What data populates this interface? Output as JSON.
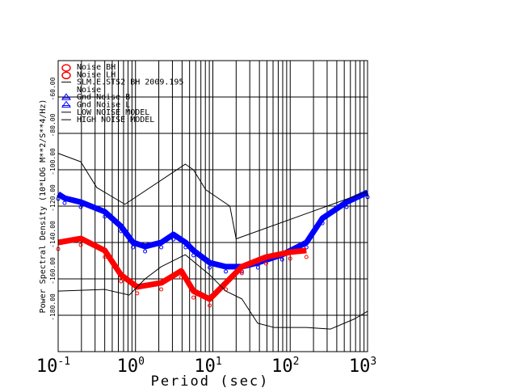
{
  "chart_data": {
    "type": "line",
    "xlabel": "Period (sec)",
    "ylabel": "Power Spectral Density (10*LOG M**2/S**4/Hz)",
    "xscale": "log",
    "xlim": [
      0.1,
      1000
    ],
    "ylim": [
      -200,
      -40
    ],
    "grid": true,
    "legend_placement": "top-left",
    "x_tick_labels": [
      {
        "base": "10",
        "exp": "-1",
        "value": 0.1
      },
      {
        "base": "10",
        "exp": "0",
        "value": 1
      },
      {
        "base": "10",
        "exp": "1",
        "value": 10
      },
      {
        "base": "10",
        "exp": "2",
        "value": 100
      },
      {
        "base": "10",
        "exp": "3",
        "value": 1000
      }
    ],
    "y_ticks": [
      {
        "label": "-60.00",
        "value": -60
      },
      {
        "label": "-80.00",
        "value": -80
      },
      {
        "label": "-100.00",
        "value": -100
      },
      {
        "label": "-120.00",
        "value": -120
      },
      {
        "label": "-140.00",
        "value": -140
      },
      {
        "label": "-160.00",
        "value": -160
      },
      {
        "label": "-180.00",
        "value": -180
      }
    ],
    "legend": [
      {
        "label": "Noise BH",
        "marker": "circle",
        "color": "#ff0000"
      },
      {
        "label": "Noise LH",
        "marker": "circle",
        "color": "#ff0000"
      },
      {
        "label": "SLM.E.STS2 BH  2009.195",
        "marker": "line",
        "color": "#000000"
      },
      {
        "label": "Noise",
        "marker": "none",
        "color": "#000000"
      },
      {
        "label": "Gnd Noise B",
        "marker": "triangle",
        "color": "#0000ff"
      },
      {
        "label": "Gnd Noise L",
        "marker": "triangle",
        "color": "#0000ff"
      },
      {
        "label": "LOW NOISE MODEL",
        "marker": "line",
        "color": "#000000"
      },
      {
        "label": "HIGH NOISE MODEL",
        "marker": "line",
        "color": "#000000"
      }
    ],
    "series": [
      {
        "name": "Gnd Noise",
        "color": "#0000ff",
        "x": [
          0.1,
          0.121,
          0.196,
          0.401,
          0.649,
          0.93,
          1.33,
          2.15,
          3.09,
          4.44,
          5.62,
          9.1,
          14.7,
          23.7,
          38.3,
          78.6,
          162,
          261,
          536,
          1000
        ],
        "y": [
          -113.3,
          -115.6,
          -117.8,
          -123.1,
          -131.1,
          -140,
          -142.2,
          -140,
          -135.6,
          -140,
          -144.4,
          -151.1,
          -153.3,
          -153.3,
          -151.1,
          -146.7,
          -140,
          -126.7,
          -117.8,
          -112.4
        ]
      },
      {
        "name": "Noise",
        "color": "#ff0000",
        "x": [
          0.1,
          0.196,
          0.401,
          0.649,
          1.05,
          2.15,
          3.9,
          5.62,
          9.1,
          14.7,
          23.7,
          48.7,
          100,
          162
        ],
        "y": [
          -140,
          -137.8,
          -144.4,
          -157.8,
          -164.4,
          -162.2,
          -155.6,
          -166.7,
          -171.1,
          -162.2,
          -153.3,
          -148,
          -145.3,
          -144.4
        ]
      },
      {
        "name": "HIGH NOISE MODEL",
        "color": "#000000",
        "x": [
          0.1,
          0.196,
          0.316,
          0.73,
          4.4,
          5.6,
          8.1,
          16.6,
          20,
          1000
        ],
        "y": [
          -91,
          -95.6,
          -109.8,
          -119,
          -96.9,
          -100,
          -111,
          -120,
          -138,
          -112
        ]
      },
      {
        "name": "LOW NOISE MODEL",
        "color": "#000000",
        "x": [
          0.1,
          0.4,
          0.83,
          1.33,
          2.15,
          4.4,
          9.1,
          14.7,
          23.7,
          38,
          61.9,
          162,
          332,
          680,
          1000
        ],
        "y": [
          -166.7,
          -165.8,
          -168.9,
          -160,
          -153.3,
          -146.7,
          -157.8,
          -166.7,
          -171,
          -184.4,
          -186.7,
          -186.7,
          -187.6,
          -182,
          -177.8
        ]
      }
    ]
  }
}
